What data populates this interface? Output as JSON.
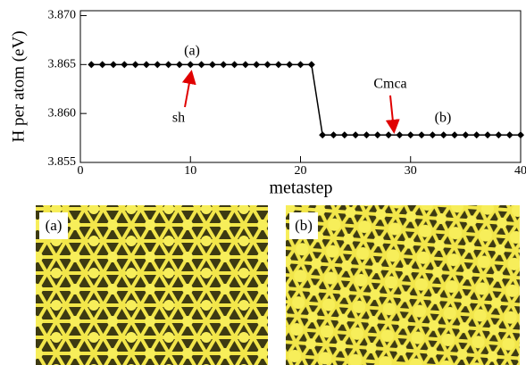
{
  "chart_data": {
    "type": "line",
    "xlabel": "metastep",
    "ylabel": "H per atom (eV)",
    "x": [
      1,
      2,
      3,
      4,
      5,
      6,
      7,
      8,
      9,
      10,
      11,
      12,
      13,
      14,
      15,
      16,
      17,
      18,
      19,
      20,
      21,
      22,
      23,
      24,
      25,
      26,
      27,
      28,
      29,
      30,
      31,
      32,
      33,
      34,
      35,
      36,
      37,
      38,
      39,
      40
    ],
    "series": [
      {
        "color": "#000000",
        "values": [
          3.865,
          3.865,
          3.865,
          3.865,
          3.865,
          3.865,
          3.865,
          3.865,
          3.865,
          3.865,
          3.865,
          3.865,
          3.865,
          3.865,
          3.865,
          3.865,
          3.865,
          3.865,
          3.865,
          3.865,
          3.865,
          3.8578,
          3.8578,
          3.8578,
          3.8578,
          3.8578,
          3.8578,
          3.8578,
          3.8578,
          3.8578,
          3.8578,
          3.8578,
          3.8578,
          3.8578,
          3.8578,
          3.8578,
          3.8578,
          3.8578,
          3.8578,
          3.8578
        ]
      }
    ],
    "xlim": [
      0,
      40
    ],
    "xticks": [
      0,
      10,
      20,
      30,
      40
    ],
    "ylim": [
      3.855,
      3.8705
    ],
    "yticks": [
      3.855,
      {
        "value": 3.86,
        "label": "3.860"
      },
      3.865,
      {
        "value": 3.87,
        "label": "3.870"
      }
    ],
    "annotations": [
      "(a)",
      "sh",
      "Cmca",
      "(b)"
    ]
  },
  "panels": [
    "(a)",
    "(b)"
  ]
}
